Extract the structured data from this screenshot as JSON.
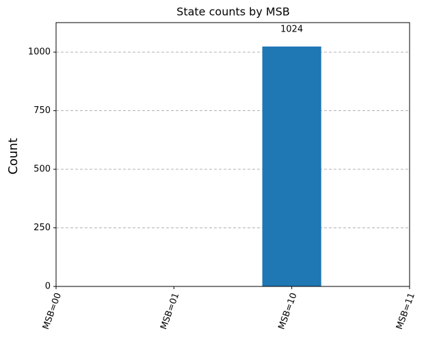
{
  "chart_data": {
    "type": "bar",
    "title": "State counts by MSB",
    "ylabel": "Count",
    "categories": [
      "MSB=00",
      "MSB=01",
      "MSB=10",
      "MSB=11"
    ],
    "values": [
      0,
      0,
      1024,
      0
    ],
    "color": "#1f77b4",
    "ylim": [
      0,
      1126
    ],
    "yticks": [
      0,
      250,
      500,
      750,
      1000
    ],
    "grid": true
  }
}
